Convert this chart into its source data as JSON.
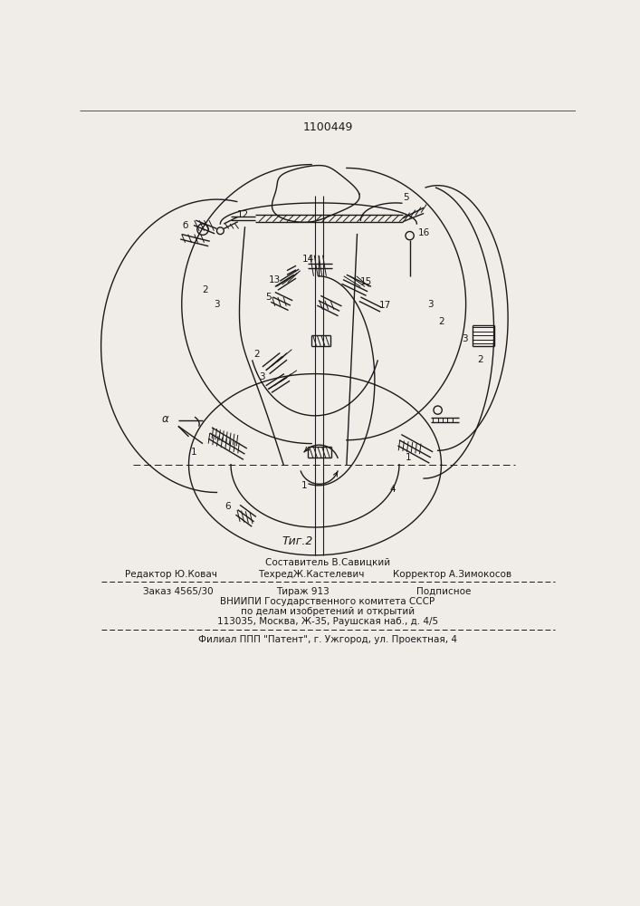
{
  "patent_number": "1100449",
  "fig_label": "Τиг.2",
  "background_color": "#f0ede8",
  "line_color": "#1a1a1a",
  "text_color": "#1a1a1a",
  "footer_line0_center": "Составитель В.Савицкий",
  "footer_line1_left": "Редактор Ю.Ковач",
  "footer_line1_center": "ТехредЖ.Кастелевич",
  "footer_line1_right": "Корректор А.Зимокосов",
  "footer_line2_left": "Заказ 4565/30",
  "footer_line2_center_left": "Тираж 913",
  "footer_line2_center_right": "Подписное",
  "footer_line3": "ВНИИПИ Государственного комитета СССР",
  "footer_line4": "по делам изобретений и открытий",
  "footer_line5": "113035, Москва, Ж-35, Раушская наб., д. 4/5",
  "footer_line6": "Филиал ППП \"Патент\", г. Ужгород, ул. Проектная, 4"
}
